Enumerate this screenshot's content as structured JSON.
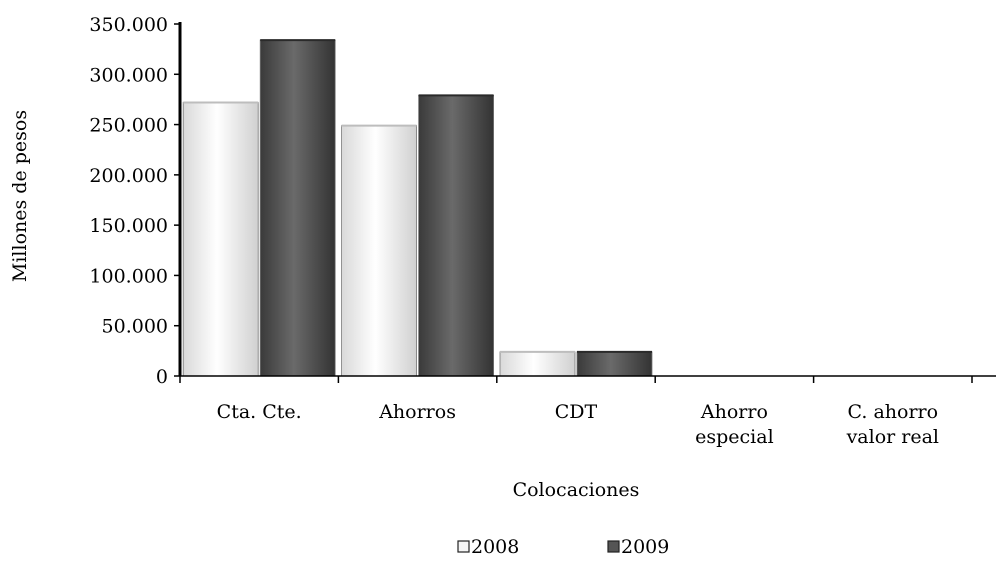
{
  "chart_data": {
    "type": "bar",
    "title": "",
    "xlabel": "Colocaciones",
    "ylabel": "Millones de pesos",
    "categories": [
      [
        "Cta. Cte."
      ],
      [
        "Ahorros"
      ],
      [
        "CDT"
      ],
      [
        "Ahorro",
        "especial"
      ],
      [
        "C. ahorro",
        "valor real"
      ]
    ],
    "series": [
      {
        "name": "2008",
        "values": [
          272000,
          249000,
          24000,
          0,
          0
        ],
        "color": "#ececec"
      },
      {
        "name": "2009",
        "values": [
          334000,
          279000,
          24000,
          0,
          0
        ],
        "color": "#555555"
      }
    ],
    "ylim": [
      0,
      350000
    ],
    "yticks": [
      0,
      50000,
      100000,
      150000,
      200000,
      250000,
      300000,
      350000
    ],
    "ytick_labels": [
      "0",
      "50.000",
      "100.000",
      "150.000",
      "200.000",
      "250.000",
      "300.000",
      "350.000"
    ],
    "grid": false,
    "legend_position": "bottom"
  }
}
